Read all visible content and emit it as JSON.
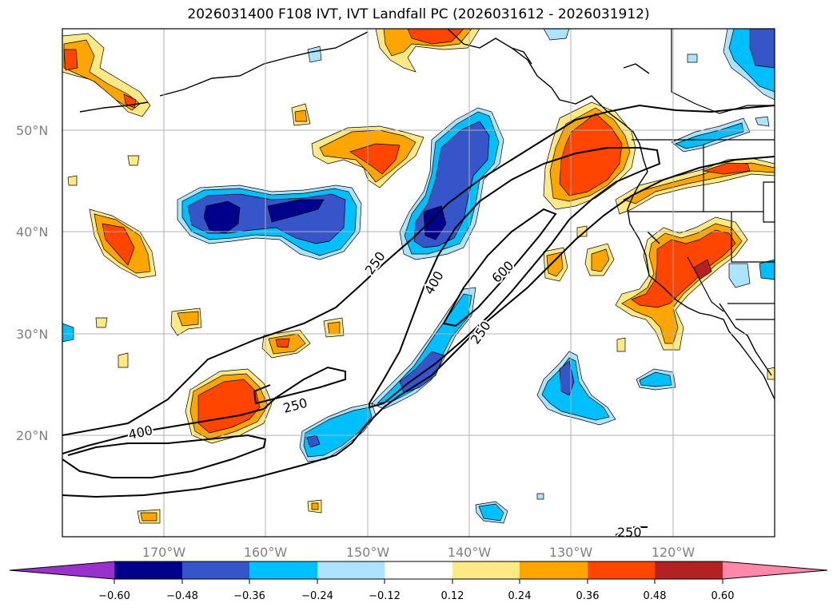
{
  "title": "2026031400 F108 IVT, IVT Landfall PC (2026031612 - 2026031912)",
  "lat_labels": [
    "50°N",
    "40°N",
    "30°N",
    "20°N"
  ],
  "lon_labels": [
    "170°W",
    "160°W",
    "150°W",
    "140°W",
    "130°W",
    "120°W"
  ],
  "contour_labels": [
    "250",
    "400",
    "600",
    "250",
    "250",
    "400",
    "250"
  ],
  "colorbar": {
    "ticks": [
      "−0.60",
      "−0.48",
      "−0.36",
      "−0.24",
      "−0.12",
      "0.12",
      "0.24",
      "0.36",
      "0.48",
      "0.60"
    ],
    "colors": [
      "#9932cc",
      "#00008b",
      "#3655c8",
      "#00bfff",
      "#aee3ff",
      "#ffffff",
      "#ffe986",
      "#ffa500",
      "#ff4500",
      "#b22222",
      "#ff88aa"
    ]
  },
  "legend_colors": {
    "ocean": "#ffffff",
    "land_outline": "#000000",
    "grid": "#b0b0b0",
    "label_gray": "#808080"
  }
}
